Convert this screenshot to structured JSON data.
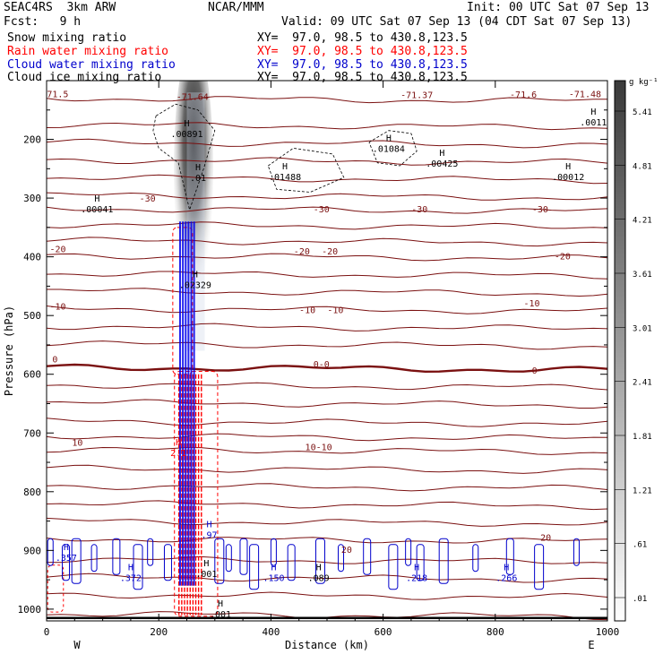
{
  "header": {
    "model": "SEAC4RS  3km ARW",
    "org": "NCAR/MMM",
    "init": "Init: 00 UTC Sat 07 Sep 13",
    "fcst": "Fcst:   9 h",
    "valid": "Valid: 09 UTC Sat 07 Sep 13 (04 CDT Sat 07 Sep 13)",
    "fields": [
      {
        "name": "Snow mixing ratio",
        "xy": "XY=  97.0, 98.5 to 430.8,123.5",
        "color": "#000000"
      },
      {
        "name": "Rain water mixing ratio",
        "xy": "XY=  97.0, 98.5 to 430.8,123.5",
        "color": "#ff0000"
      },
      {
        "name": "Cloud water mixing ratio",
        "xy": "XY=  97.0, 98.5 to 430.8,123.5",
        "color": "#0000cc"
      },
      {
        "name": "Cloud ice mixing ratio",
        "xy": "XY=  97.0, 98.5 to 430.8,123.5",
        "color": "#000000"
      }
    ]
  },
  "chart_data": {
    "type": "cross-section",
    "xlabel": "Distance (km)",
    "ylabel": "Pressure (hPa)",
    "xlim": [
      0,
      1000
    ],
    "ylim": [
      1020,
      100
    ],
    "x_ticks": [
      0,
      200,
      400,
      600,
      800,
      1000
    ],
    "y_ticks": [
      200,
      300,
      400,
      500,
      600,
      700,
      800,
      900,
      1000
    ],
    "x_end_labels": [
      "W",
      "E"
    ],
    "colorbar": {
      "unit": "g kg⁻¹",
      "levels": [
        ".01",
        ".61",
        "1.21",
        "1.81",
        "2.41",
        "3.01",
        "3.61",
        "4.21",
        "4.81",
        "5.41"
      ]
    },
    "temperature_contours": [
      {
        "label": "-30",
        "p": 315
      },
      {
        "label": "-20",
        "p": 395
      },
      {
        "label": "-10",
        "p": 485
      },
      {
        "label": "0",
        "p": 585
      },
      {
        "label": "10",
        "p": 725
      },
      {
        "label": "20",
        "p": 880
      }
    ],
    "temperature_labels": [
      {
        "text": "-71.64",
        "x": 260,
        "p": 127
      },
      {
        "text": "-71.37",
        "x": 660,
        "p": 124
      },
      {
        "text": "-71.48",
        "x": 960,
        "p": 122
      },
      {
        "text": "-71.6",
        "x": 850,
        "p": 123
      },
      {
        "text": "-71.5",
        "x": 15,
        "p": 122
      },
      {
        "text": "-30",
        "x": 180,
        "p": 300
      },
      {
        "text": "-30",
        "x": 490,
        "p": 318
      },
      {
        "text": "-30",
        "x": 665,
        "p": 318
      },
      {
        "text": "-30",
        "x": 880,
        "p": 318
      },
      {
        "text": "-20",
        "x": 20,
        "p": 386
      },
      {
        "text": "-20",
        "x": 455,
        "p": 390
      },
      {
        "text": "-20",
        "x": 505,
        "p": 390
      },
      {
        "text": "-20",
        "x": 920,
        "p": 398
      },
      {
        "text": "-10",
        "x": 20,
        "p": 484
      },
      {
        "text": "-10",
        "x": 465,
        "p": 490
      },
      {
        "text": "-10",
        "x": 515,
        "p": 490
      },
      {
        "text": "-10",
        "x": 865,
        "p": 478
      },
      {
        "text": "0",
        "x": 15,
        "p": 574
      },
      {
        "text": "0-0",
        "x": 490,
        "p": 582
      },
      {
        "text": "0",
        "x": 870,
        "p": 593
      },
      {
        "text": "10",
        "x": 55,
        "p": 716
      },
      {
        "text": "10-10",
        "x": 485,
        "p": 723
      },
      {
        "text": "20",
        "x": 535,
        "p": 898
      },
      {
        "text": "20",
        "x": 890,
        "p": 877
      }
    ],
    "maxima": [
      {
        "label": ".00891",
        "x": 250,
        "p": 190
      },
      {
        "label": ".01",
        "x": 270,
        "p": 265
      },
      {
        "label": ".00041",
        "x": 90,
        "p": 318
      },
      {
        "label": ".01488",
        "x": 425,
        "p": 263
      },
      {
        "label": ".01084",
        "x": 610,
        "p": 215
      },
      {
        "label": ".00425",
        "x": 705,
        "p": 240
      },
      {
        "label": ".0011",
        "x": 975,
        "p": 170
      },
      {
        "label": ".00012",
        "x": 930,
        "p": 263
      },
      {
        "label": ".02329",
        "x": 265,
        "p": 447
      },
      {
        "label": ".357",
        "x": 35,
        "p": 912
      },
      {
        "label": ".372",
        "x": 150,
        "p": 946
      },
      {
        "label": ".150",
        "x": 405,
        "p": 946
      },
      {
        "label": ".089",
        "x": 485,
        "p": 946
      },
      {
        "label": ".218",
        "x": 660,
        "p": 946
      },
      {
        "label": ".266",
        "x": 820,
        "p": 946
      },
      {
        "label": ".97",
        "x": 290,
        "p": 873
      },
      {
        "label": ".001",
        "x": 285,
        "p": 939
      },
      {
        "label": ".001",
        "x": 310,
        "p": 1008
      },
      {
        "label": "2.1",
        "x": 235,
        "p": 733
      }
    ]
  }
}
